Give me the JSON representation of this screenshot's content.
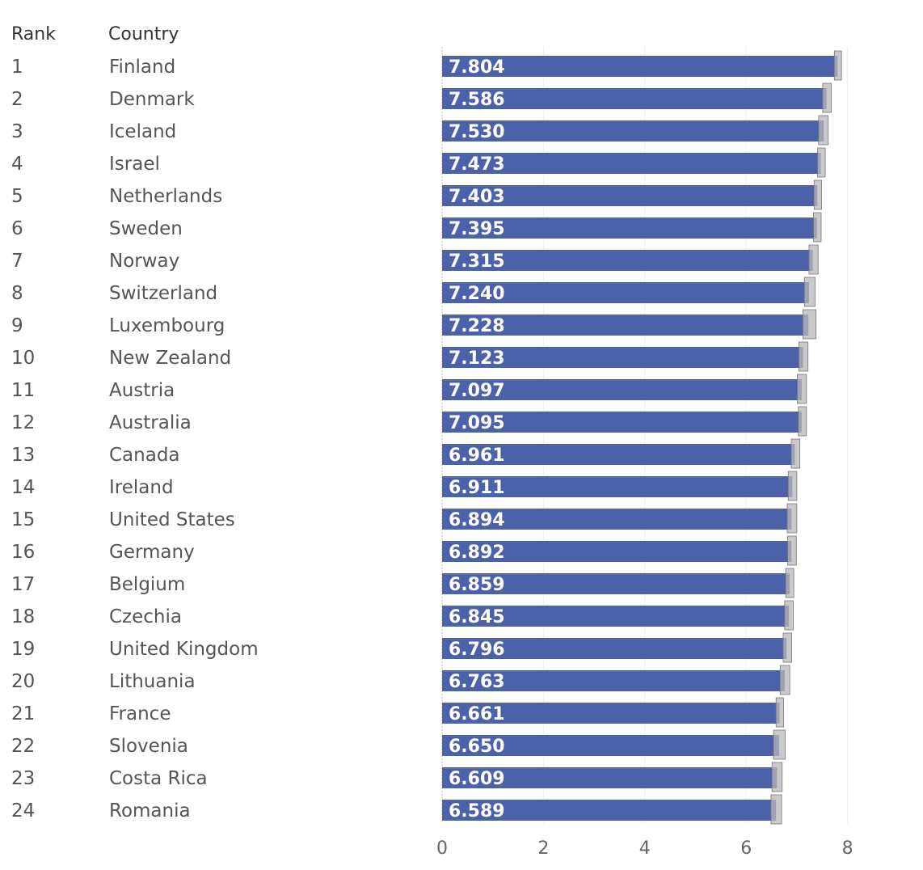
{
  "header": {
    "rank_label": "Rank",
    "country_label": "Country"
  },
  "colors": {
    "bar": "#4b62ab",
    "ci": "#b8b8b8",
    "ci_edge": "#777777",
    "grid": "#eeeeee",
    "text": "#555555"
  },
  "chart_data": {
    "type": "bar",
    "orientation": "horizontal",
    "title": "",
    "xlabel": "",
    "ylabel": "",
    "xlim": [
      0,
      9
    ],
    "x_ticks": [
      0,
      2,
      4,
      6,
      8
    ],
    "grid": true,
    "ranks": [
      "1",
      "2",
      "3",
      "4",
      "5",
      "6",
      "7",
      "8",
      "9",
      "10",
      "11",
      "12",
      "13",
      "14",
      "15",
      "16",
      "17",
      "18",
      "19",
      "20",
      "21",
      "22",
      "23",
      "24"
    ],
    "categories": [
      "Finland",
      "Denmark",
      "Iceland",
      "Israel",
      "Netherlands",
      "Sweden",
      "Norway",
      "Switzerland",
      "Luxembourg",
      "New Zealand",
      "Austria",
      "Australia",
      "Canada",
      "Ireland",
      "United States",
      "Germany",
      "Belgium",
      "Czechia",
      "United Kingdom",
      "Lithuania",
      "France",
      "Slovenia",
      "Costa Rica",
      "Romania"
    ],
    "values": [
      7.804,
      7.586,
      7.53,
      7.473,
      7.403,
      7.395,
      7.315,
      7.24,
      7.228,
      7.123,
      7.097,
      7.095,
      6.961,
      6.911,
      6.894,
      6.892,
      6.859,
      6.845,
      6.796,
      6.763,
      6.661,
      6.65,
      6.609,
      6.589
    ],
    "value_labels": [
      "7.804",
      "7.586",
      "7.530",
      "7.473",
      "7.403",
      "7.395",
      "7.315",
      "7.240",
      "7.228",
      "7.123",
      "7.097",
      "7.095",
      "6.961",
      "6.911",
      "6.894",
      "6.892",
      "6.859",
      "6.845",
      "6.796",
      "6.763",
      "6.661",
      "6.650",
      "6.609",
      "6.589"
    ],
    "ci_low": [
      7.74,
      7.51,
      7.43,
      7.41,
      7.34,
      7.33,
      7.24,
      7.15,
      7.12,
      7.04,
      7.01,
      7.03,
      6.89,
      6.83,
      6.81,
      6.82,
      6.78,
      6.76,
      6.73,
      6.67,
      6.59,
      6.54,
      6.51,
      6.49
    ],
    "ci_high": [
      7.88,
      7.68,
      7.62,
      7.56,
      7.49,
      7.48,
      7.42,
      7.36,
      7.38,
      7.22,
      7.19,
      7.19,
      7.06,
      7.0,
      7.0,
      6.99,
      6.94,
      6.93,
      6.9,
      6.86,
      6.74,
      6.77,
      6.71,
      6.7
    ]
  }
}
